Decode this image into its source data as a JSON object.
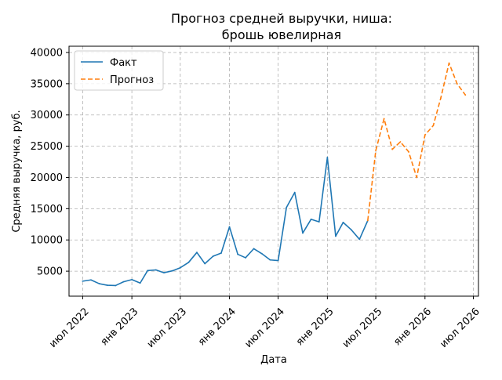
{
  "chart_data": {
    "type": "line",
    "title_lines": [
      "Прогноз средней выручки, ниша:",
      "брошь ювелирная"
    ],
    "xlabel": "Дата",
    "ylabel": "Средняя выручка, руб.",
    "ylim": [
      1000,
      41000
    ],
    "y_ticks": [
      5000,
      10000,
      15000,
      20000,
      25000,
      30000,
      35000,
      40000
    ],
    "xlim": [
      "2022-05-11",
      "2026-07-20"
    ],
    "x_ticks": [
      {
        "date": "2022-07-01",
        "label": "июл 2022"
      },
      {
        "date": "2023-01-01",
        "label": "янв 2023"
      },
      {
        "date": "2023-07-01",
        "label": "июл 2023"
      },
      {
        "date": "2024-01-01",
        "label": "янв 2024"
      },
      {
        "date": "2024-07-01",
        "label": "июл 2024"
      },
      {
        "date": "2025-01-01",
        "label": "янв 2025"
      },
      {
        "date": "2025-07-01",
        "label": "июл 2025"
      },
      {
        "date": "2026-01-01",
        "label": "янв 2026"
      },
      {
        "date": "2026-07-01",
        "label": "июл 2026"
      }
    ],
    "grid": true,
    "legend_position": "top-left",
    "series": [
      {
        "name": "Факт",
        "color": "#1f77b4",
        "style": "solid",
        "points": [
          {
            "x": "2022-07-01",
            "y": 3400
          },
          {
            "x": "2022-08-01",
            "y": 3600
          },
          {
            "x": "2022-09-01",
            "y": 3000
          },
          {
            "x": "2022-10-01",
            "y": 2750
          },
          {
            "x": "2022-11-01",
            "y": 2700
          },
          {
            "x": "2022-12-01",
            "y": 3300
          },
          {
            "x": "2023-01-01",
            "y": 3650
          },
          {
            "x": "2023-02-01",
            "y": 3100
          },
          {
            "x": "2023-03-01",
            "y": 5100
          },
          {
            "x": "2023-04-01",
            "y": 5200
          },
          {
            "x": "2023-05-01",
            "y": 4750
          },
          {
            "x": "2023-06-01",
            "y": 5050
          },
          {
            "x": "2023-07-01",
            "y": 5550
          },
          {
            "x": "2023-08-01",
            "y": 6400
          },
          {
            "x": "2023-09-01",
            "y": 8000
          },
          {
            "x": "2023-10-01",
            "y": 6200
          },
          {
            "x": "2023-11-01",
            "y": 7400
          },
          {
            "x": "2023-12-01",
            "y": 7900
          },
          {
            "x": "2024-01-01",
            "y": 12100
          },
          {
            "x": "2024-02-01",
            "y": 7700
          },
          {
            "x": "2024-03-01",
            "y": 7150
          },
          {
            "x": "2024-04-01",
            "y": 8600
          },
          {
            "x": "2024-05-01",
            "y": 7800
          },
          {
            "x": "2024-06-01",
            "y": 6800
          },
          {
            "x": "2024-07-01",
            "y": 6700
          },
          {
            "x": "2024-08-01",
            "y": 15200
          },
          {
            "x": "2024-09-01",
            "y": 17600
          },
          {
            "x": "2024-10-01",
            "y": 11100
          },
          {
            "x": "2024-11-01",
            "y": 13300
          },
          {
            "x": "2024-12-01",
            "y": 12900
          },
          {
            "x": "2025-01-01",
            "y": 23200
          },
          {
            "x": "2025-02-01",
            "y": 10600
          },
          {
            "x": "2025-03-01",
            "y": 12800
          },
          {
            "x": "2025-04-01",
            "y": 11600
          },
          {
            "x": "2025-05-01",
            "y": 10100
          },
          {
            "x": "2025-06-01",
            "y": 13100
          }
        ]
      },
      {
        "name": "Прогноз",
        "color": "#ff7f0e",
        "style": "dashed",
        "points": [
          {
            "x": "2025-06-01",
            "y": 13100
          },
          {
            "x": "2025-07-01",
            "y": 24300
          },
          {
            "x": "2025-08-01",
            "y": 29400
          },
          {
            "x": "2025-09-01",
            "y": 24500
          },
          {
            "x": "2025-10-01",
            "y": 25700
          },
          {
            "x": "2025-11-01",
            "y": 24100
          },
          {
            "x": "2025-12-01",
            "y": 20000
          },
          {
            "x": "2026-01-01",
            "y": 26800
          },
          {
            "x": "2026-02-01",
            "y": 28300
          },
          {
            "x": "2026-03-01",
            "y": 32700
          },
          {
            "x": "2026-04-01",
            "y": 38300
          },
          {
            "x": "2026-05-01",
            "y": 35000
          },
          {
            "x": "2026-06-01",
            "y": 33200
          }
        ]
      }
    ]
  }
}
